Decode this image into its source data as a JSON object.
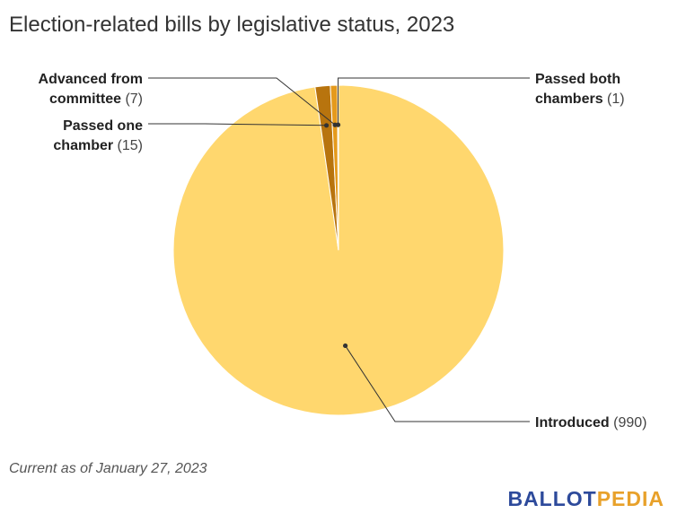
{
  "chart_data": {
    "type": "pie",
    "title": "Election-related bills by legislative status, 2023",
    "slices": [
      {
        "label": "Introduced",
        "value": 990,
        "color": "#FFD76E"
      },
      {
        "label": "Passed one chamber",
        "value": 15,
        "color": "#B8740E"
      },
      {
        "label": "Advanced from committee",
        "value": 7,
        "color": "#E59A1C"
      },
      {
        "label": "Passed both chambers",
        "value": 1,
        "color": "#FFF1C8"
      }
    ],
    "labels": [
      {
        "lines": [
          [
            "Advanced from",
            ""
          ],
          [
            "committee",
            " (7)"
          ]
        ],
        "slice": 2
      },
      {
        "lines": [
          [
            "Passed one",
            ""
          ],
          [
            "chamber",
            " (15)"
          ]
        ],
        "slice": 1
      },
      {
        "lines": [
          [
            "Passed both",
            ""
          ],
          [
            "chambers",
            " (1)"
          ]
        ],
        "slice": 3
      },
      {
        "lines": [
          [
            "Introduced",
            " (990)"
          ]
        ],
        "slice": 0
      }
    ]
  },
  "footer": {
    "note": "Current as of January 27, 2023",
    "brand_part1": "BALLOT",
    "brand_part2": "PEDIA",
    "brand_color1": "#2D4A9B",
    "brand_color2": "#E8A12A"
  }
}
